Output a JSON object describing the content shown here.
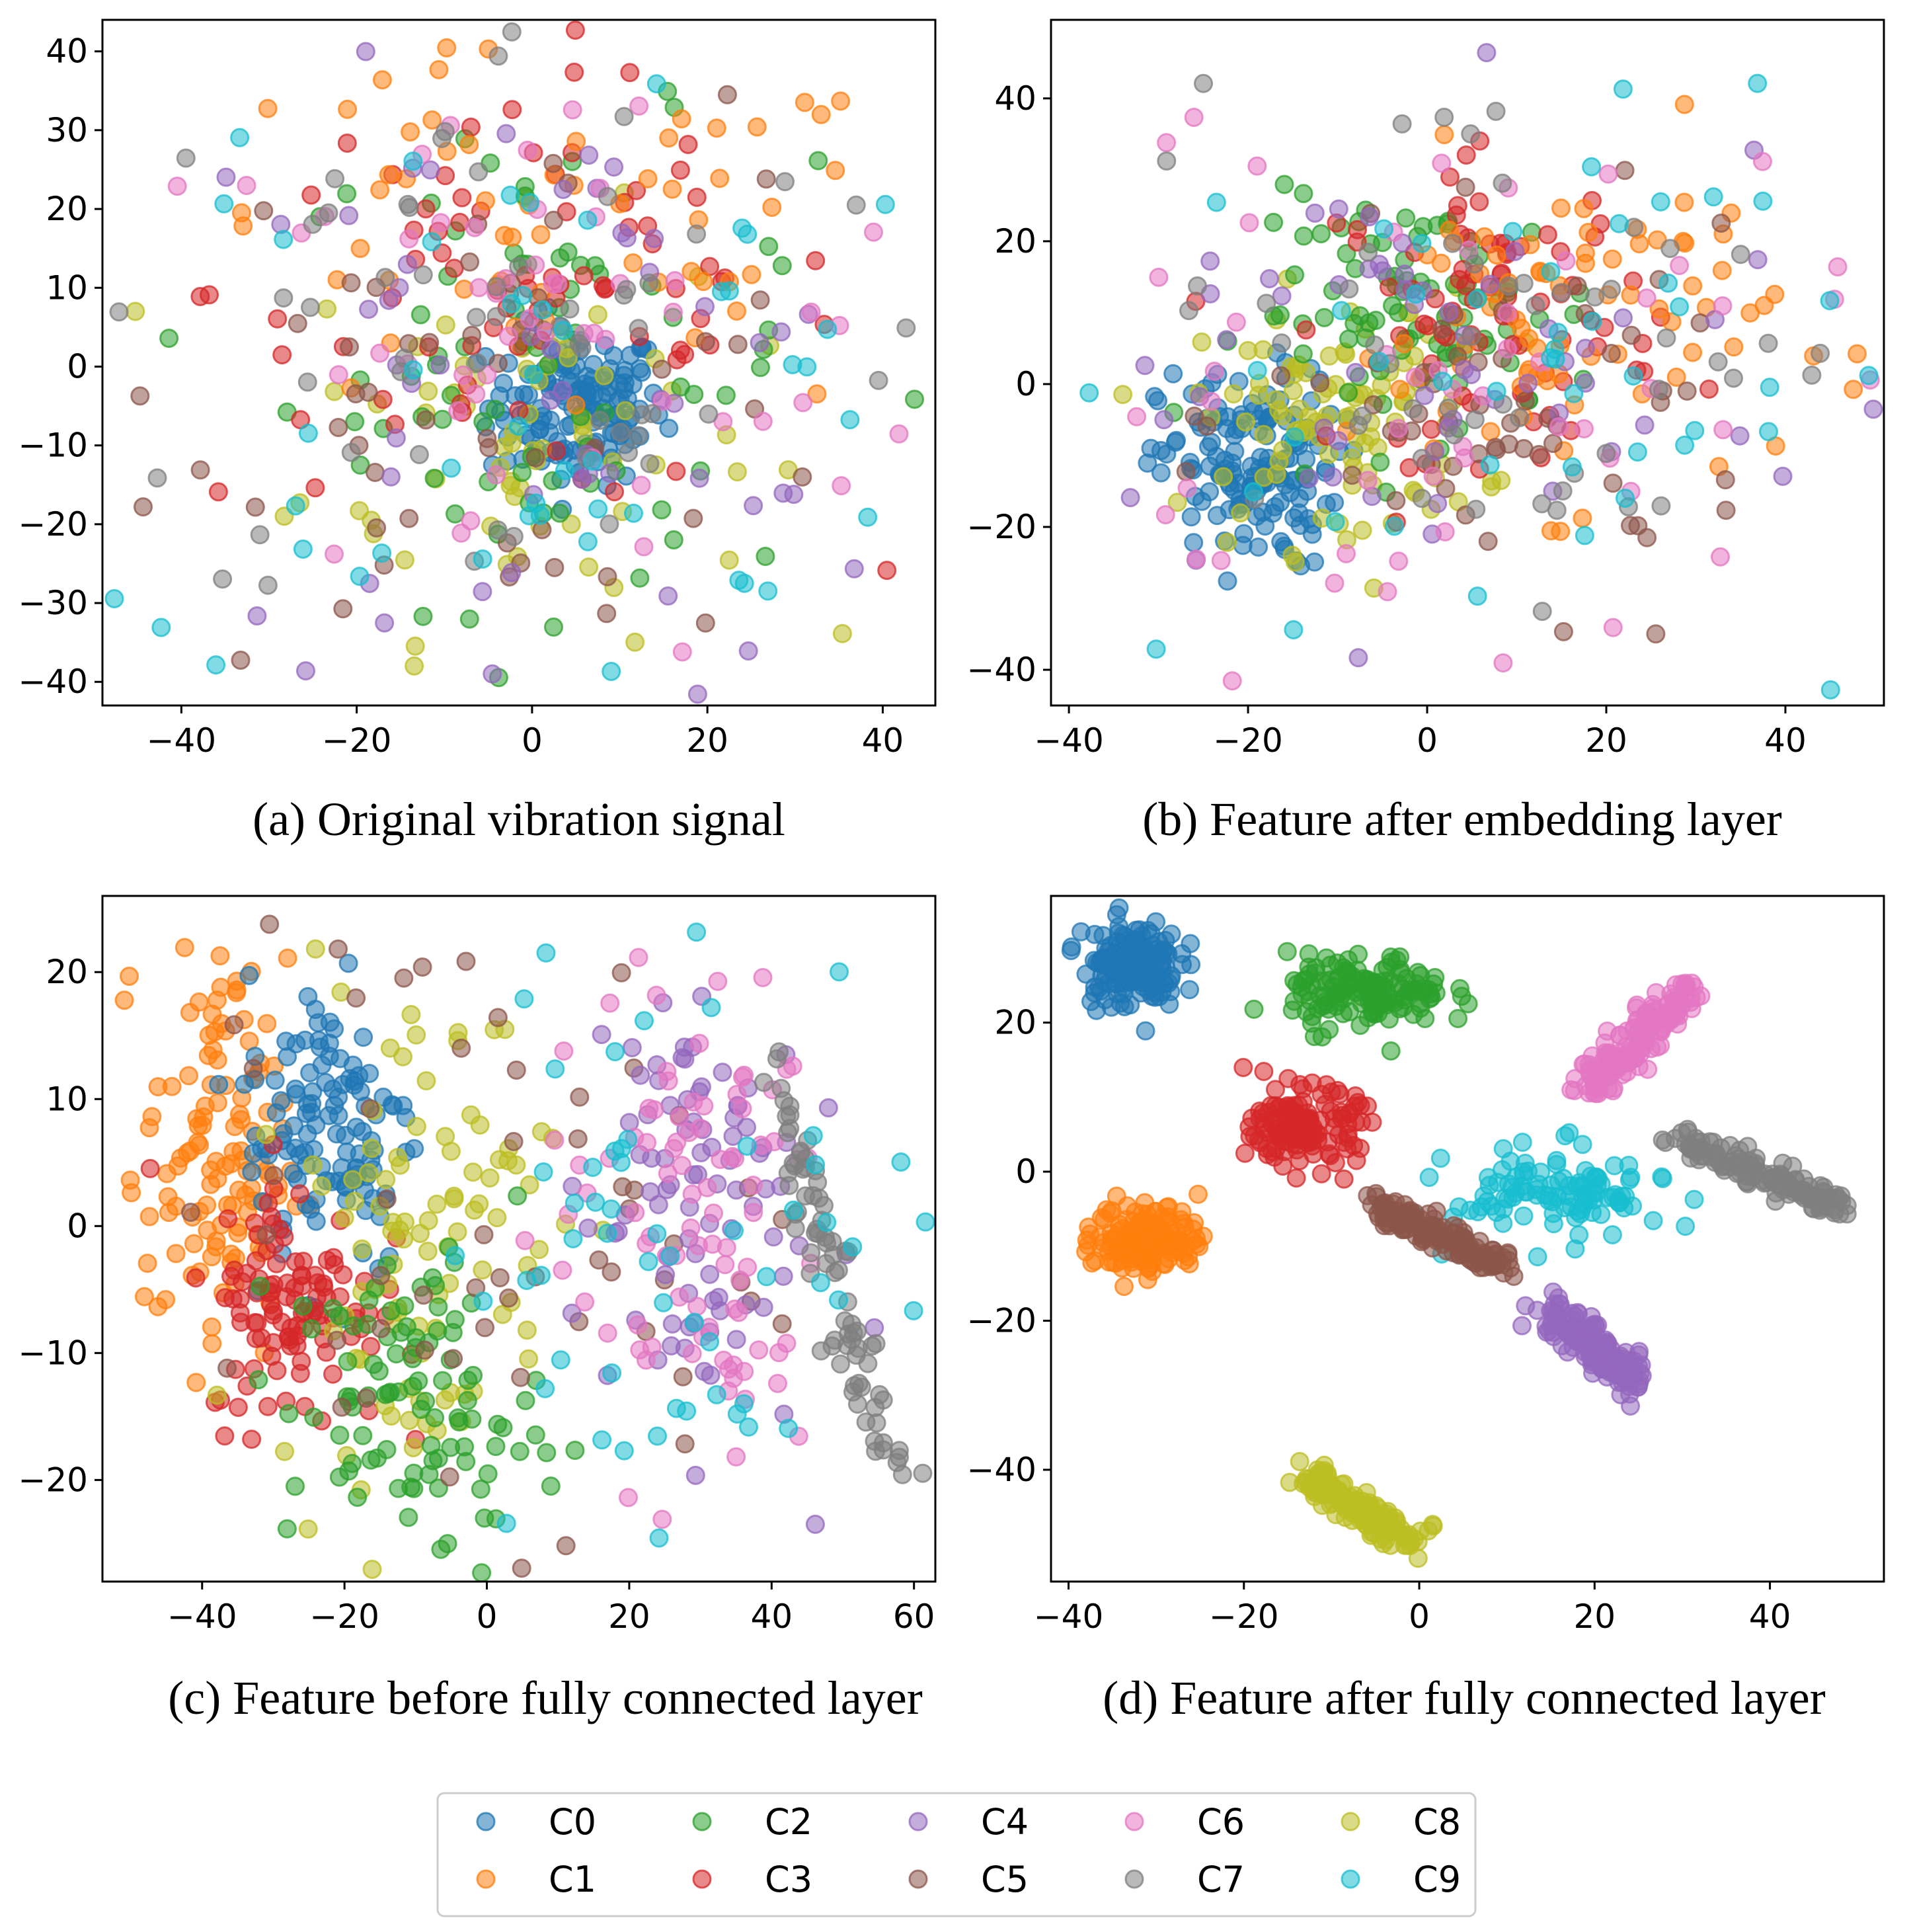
{
  "chart_data": {
    "type": "scatter",
    "description_kind": "t-SNE visualization of features",
    "legend": {
      "placement": "bottom-center",
      "entries": [
        "C0",
        "C1",
        "C2",
        "C3",
        "C4",
        "C5",
        "C6",
        "C7",
        "C8",
        "C9"
      ]
    },
    "colors": {
      "C0": "#1f77b4",
      "C1": "#ff7f0e",
      "C2": "#2ca02c",
      "C3": "#d62728",
      "C4": "#9467bd",
      "C5": "#8c564b",
      "C6": "#e377c2",
      "C7": "#7f7f7f",
      "C8": "#bcbd22",
      "C9": "#17becf"
    },
    "panels": [
      {
        "id": "a",
        "title": "(a) Original vibration signal",
        "xlim": [
          -49,
          46
        ],
        "ylim": [
          -43,
          44
        ],
        "xticks": [
          -40,
          -20,
          0,
          20,
          40
        ],
        "yticks": [
          -40,
          -30,
          -20,
          -10,
          0,
          10,
          20,
          30,
          40
        ],
        "clusters": [
          {
            "class": "C0",
            "kind": "blob",
            "center": [
              5,
              -5
            ],
            "spread": [
              5,
              5
            ],
            "count": 150
          },
          {
            "class": "C8",
            "kind": "blob",
            "center": [
              0,
              -8
            ],
            "spread": [
              13,
              13
            ],
            "count": 70
          },
          {
            "class": "C2",
            "kind": "blob",
            "center": [
              2,
              0
            ],
            "spread": [
              15,
              15
            ],
            "count": 80
          },
          {
            "class": "C3",
            "kind": "blob",
            "center": [
              0,
              10
            ],
            "spread": [
              18,
              14
            ],
            "count": 80
          },
          {
            "class": "C1",
            "kind": "blob",
            "center": [
              0,
              15
            ],
            "spread": [
              22,
              12
            ],
            "count": 60
          },
          {
            "class": "C5",
            "kind": "blob",
            "center": [
              0,
              0
            ],
            "spread": [
              20,
              18
            ],
            "count": 60
          },
          {
            "class": "C4",
            "kind": "blob",
            "center": [
              0,
              -5
            ],
            "spread": [
              22,
              20
            ],
            "count": 60
          },
          {
            "class": "C6",
            "kind": "blob",
            "center": [
              0,
              0
            ],
            "spread": [
              24,
              20
            ],
            "count": 60
          },
          {
            "class": "C7",
            "kind": "blob",
            "center": [
              0,
              5
            ],
            "spread": [
              25,
              20
            ],
            "count": 60
          },
          {
            "class": "C9",
            "kind": "blob",
            "center": [
              0,
              0
            ],
            "spread": [
              25,
              20
            ],
            "count": 55
          }
        ]
      },
      {
        "id": "b",
        "title": "(b) Feature after embedding layer",
        "xlim": [
          -42,
          51
        ],
        "ylim": [
          -45,
          51
        ],
        "xticks": [
          -40,
          -20,
          0,
          20,
          40
        ],
        "yticks": [
          -40,
          -20,
          0,
          20,
          40
        ],
        "clusters": [
          {
            "class": "C0",
            "kind": "blob",
            "center": [
              -20,
              -12
            ],
            "spread": [
              5,
              7
            ],
            "count": 150
          },
          {
            "class": "C8",
            "kind": "blob",
            "center": [
              -10,
              -5
            ],
            "spread": [
              8,
              9
            ],
            "count": 100
          },
          {
            "class": "C2",
            "kind": "blob",
            "center": [
              0,
              10
            ],
            "spread": [
              10,
              8
            ],
            "count": 90
          },
          {
            "class": "C3",
            "kind": "blob",
            "center": [
              8,
              10
            ],
            "spread": [
              9,
              10
            ],
            "count": 80
          },
          {
            "class": "C1",
            "kind": "blob",
            "center": [
              15,
              8
            ],
            "spread": [
              12,
              12
            ],
            "count": 80
          },
          {
            "class": "C5",
            "kind": "blob",
            "center": [
              10,
              -5
            ],
            "spread": [
              14,
              12
            ],
            "count": 60
          },
          {
            "class": "C4",
            "kind": "blob",
            "center": [
              0,
              0
            ],
            "spread": [
              22,
              18
            ],
            "count": 60
          },
          {
            "class": "C6",
            "kind": "blob",
            "center": [
              0,
              0
            ],
            "spread": [
              24,
              20
            ],
            "count": 60
          },
          {
            "class": "C7",
            "kind": "blob",
            "center": [
              10,
              10
            ],
            "spread": [
              22,
              18
            ],
            "count": 60
          },
          {
            "class": "C9",
            "kind": "blob",
            "center": [
              5,
              0
            ],
            "spread": [
              24,
              20
            ],
            "count": 55
          }
        ]
      },
      {
        "id": "c",
        "title": "(c) Feature before fully connected layer",
        "xlim": [
          -54,
          63
        ],
        "ylim": [
          -28,
          26
        ],
        "xticks": [
          -40,
          -20,
          0,
          20,
          40,
          60
        ],
        "yticks": [
          -20,
          -10,
          0,
          10,
          20
        ],
        "clusters": [
          {
            "class": "C1",
            "kind": "blob",
            "center": [
              -38,
              5
            ],
            "spread": [
              5,
              8
            ],
            "count": 120
          },
          {
            "class": "C0",
            "kind": "blob",
            "center": [
              -22,
              8
            ],
            "spread": [
              6,
              6
            ],
            "count": 120
          },
          {
            "class": "C3",
            "kind": "blob",
            "center": [
              -27,
              -6
            ],
            "spread": [
              6,
              5
            ],
            "count": 110
          },
          {
            "class": "C8",
            "kind": "blob",
            "center": [
              -10,
              0
            ],
            "spread": [
              10,
              10
            ],
            "count": 100
          },
          {
            "class": "C2",
            "kind": "blob",
            "center": [
              -10,
              -14
            ],
            "spread": [
              9,
              6
            ],
            "count": 100
          },
          {
            "class": "C5",
            "kind": "blob",
            "center": [
              0,
              0
            ],
            "spread": [
              20,
              12
            ],
            "count": 60
          },
          {
            "class": "C4",
            "kind": "blob",
            "center": [
              28,
              2
            ],
            "spread": [
              8,
              10
            ],
            "count": 90
          },
          {
            "class": "C6",
            "kind": "blob",
            "center": [
              28,
              0
            ],
            "spread": [
              10,
              10
            ],
            "count": 90
          },
          {
            "class": "C7",
            "kind": "line",
            "from": [
              40,
              12
            ],
            "to": [
              57,
              -20
            ],
            "spread": 1.5,
            "count": 80
          },
          {
            "class": "C9",
            "kind": "blob",
            "center": [
              30,
              0
            ],
            "spread": [
              18,
              12
            ],
            "count": 60
          }
        ]
      },
      {
        "id": "d",
        "title": "(d) Feature after fully connected layer",
        "xlim": [
          -42,
          53
        ],
        "ylim": [
          -55,
          37
        ],
        "xticks": [
          -40,
          -20,
          0,
          20,
          40
        ],
        "yticks": [
          -40,
          -20,
          0,
          20
        ],
        "clusters": [
          {
            "class": "C0",
            "kind": "blob",
            "center": [
              -33,
              28
            ],
            "spread": [
              2.8,
              3
            ],
            "count": 150
          },
          {
            "class": "C2",
            "kind": "blob",
            "center": [
              -6,
              24
            ],
            "spread": [
              4.5,
              2.5
            ],
            "count": 150
          },
          {
            "class": "C6",
            "kind": "line",
            "from": [
              19,
              11
            ],
            "to": [
              31,
              25
            ],
            "spread": 1.2,
            "count": 150
          },
          {
            "class": "C3",
            "kind": "blob",
            "center": [
              -13,
              6
            ],
            "spread": [
              3,
              2.5
            ],
            "count": 150
          },
          {
            "class": "C7",
            "kind": "line",
            "from": [
              30,
              4
            ],
            "to": [
              48,
              -5
            ],
            "spread": 0.9,
            "count": 150
          },
          {
            "class": "C9",
            "kind": "blob",
            "center": [
              16,
              -3
            ],
            "spread": [
              6,
              3
            ],
            "count": 110
          },
          {
            "class": "C5",
            "kind": "line",
            "from": [
              -6,
              -4
            ],
            "to": [
              10,
              -13
            ],
            "spread": 0.9,
            "count": 150
          },
          {
            "class": "C1",
            "kind": "blob",
            "center": [
              -31,
              -9
            ],
            "spread": [
              3,
              2.5
            ],
            "count": 150
          },
          {
            "class": "C4",
            "kind": "line",
            "from": [
              15,
              -19
            ],
            "to": [
              25,
              -28
            ],
            "spread": 1.3,
            "count": 150
          },
          {
            "class": "C8",
            "kind": "line",
            "from": [
              -13,
              -41
            ],
            "to": [
              0,
              -50
            ],
            "spread": 1.0,
            "count": 150
          }
        ]
      }
    ]
  }
}
